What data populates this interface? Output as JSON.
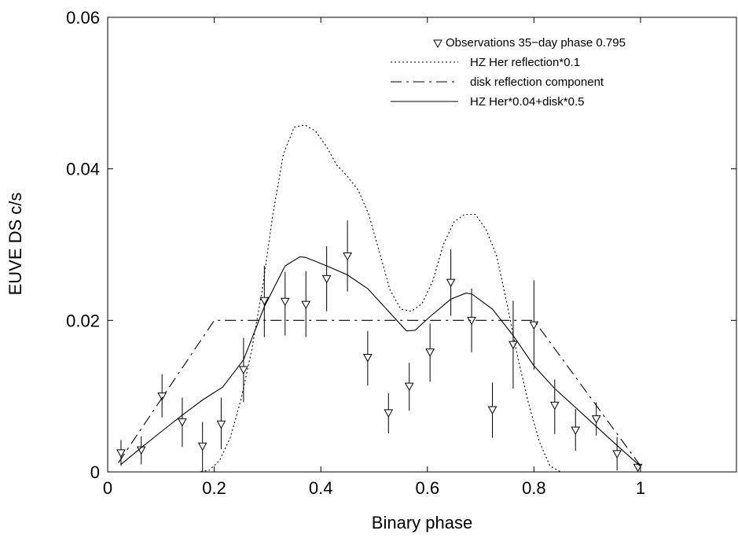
{
  "chart_data": {
    "type": "scatter",
    "xlabel": "Binary phase",
    "ylabel": "EUVE DS c/s",
    "xlim": [
      0,
      1.18
    ],
    "ylim": [
      0,
      0.06
    ],
    "x_ticks": [
      0,
      0.2,
      0.4,
      0.6,
      0.8,
      1
    ],
    "x_tick_labels": [
      "0",
      "0.2",
      "0.4",
      "0.6",
      "0.8",
      "1"
    ],
    "y_ticks": [
      0,
      0.02,
      0.04,
      0.06
    ],
    "y_tick_labels": [
      "0",
      "0.02",
      "0.04",
      "0.06"
    ],
    "grid": false,
    "legend_position": "top-right",
    "series": [
      {
        "name": "Observations 35−day phase 0.795",
        "kind": "points-errorbars",
        "marker": "triangle-down",
        "points": [
          {
            "x": 0.025,
            "y": 0.0025,
            "lo": 0.0008,
            "hi": 0.0042
          },
          {
            "x": 0.063,
            "y": 0.0029,
            "lo": 0.001,
            "hi": 0.0047
          },
          {
            "x": 0.102,
            "y": 0.01,
            "lo": 0.0072,
            "hi": 0.0129
          },
          {
            "x": 0.14,
            "y": 0.0066,
            "lo": 0.0033,
            "hi": 0.0098
          },
          {
            "x": 0.178,
            "y": 0.0034,
            "lo": 0.0,
            "hi": 0.0066
          },
          {
            "x": 0.213,
            "y": 0.0063,
            "lo": 0.003,
            "hi": 0.0098
          },
          {
            "x": 0.255,
            "y": 0.0135,
            "lo": 0.0092,
            "hi": 0.0177
          },
          {
            "x": 0.294,
            "y": 0.0226,
            "lo": 0.0178,
            "hi": 0.0272
          },
          {
            "x": 0.333,
            "y": 0.0225,
            "lo": 0.018,
            "hi": 0.0264
          },
          {
            "x": 0.372,
            "y": 0.0221,
            "lo": 0.0178,
            "hi": 0.0265
          },
          {
            "x": 0.411,
            "y": 0.0255,
            "lo": 0.0212,
            "hi": 0.0298
          },
          {
            "x": 0.45,
            "y": 0.0285,
            "lo": 0.0238,
            "hi": 0.0332
          },
          {
            "x": 0.488,
            "y": 0.0151,
            "lo": 0.0114,
            "hi": 0.0186
          },
          {
            "x": 0.527,
            "y": 0.0078,
            "lo": 0.0051,
            "hi": 0.0104
          },
          {
            "x": 0.566,
            "y": 0.0113,
            "lo": 0.0081,
            "hi": 0.0144
          },
          {
            "x": 0.605,
            "y": 0.0158,
            "lo": 0.0119,
            "hi": 0.0196
          },
          {
            "x": 0.644,
            "y": 0.025,
            "lo": 0.0206,
            "hi": 0.0294
          },
          {
            "x": 0.683,
            "y": 0.02,
            "lo": 0.0158,
            "hi": 0.0242
          },
          {
            "x": 0.722,
            "y": 0.0082,
            "lo": 0.0045,
            "hi": 0.0118
          },
          {
            "x": 0.761,
            "y": 0.0168,
            "lo": 0.011,
            "hi": 0.0226
          },
          {
            "x": 0.8,
            "y": 0.0194,
            "lo": 0.0135,
            "hi": 0.0253
          },
          {
            "x": 0.839,
            "y": 0.0088,
            "lo": 0.005,
            "hi": 0.0122
          },
          {
            "x": 0.878,
            "y": 0.0055,
            "lo": 0.0028,
            "hi": 0.0083
          },
          {
            "x": 0.917,
            "y": 0.007,
            "lo": 0.0048,
            "hi": 0.0092
          },
          {
            "x": 0.956,
            "y": 0.0024,
            "lo": 0.0002,
            "hi": 0.0046
          },
          {
            "x": 0.995,
            "y": 0.0006,
            "lo": 0.0,
            "hi": 0.0012
          }
        ]
      },
      {
        "name": "HZ Her reflection*0.1",
        "kind": "line",
        "dash": "dotted",
        "x": [
          0.02,
          0.17,
          0.19,
          0.21,
          0.23,
          0.25,
          0.27,
          0.29,
          0.31,
          0.33,
          0.35,
          0.37,
          0.39,
          0.41,
          0.43,
          0.45,
          0.47,
          0.49,
          0.51,
          0.53,
          0.55,
          0.57,
          0.59,
          0.61,
          0.63,
          0.65,
          0.67,
          0.69,
          0.71,
          0.73,
          0.75,
          0.77,
          0.79,
          0.81,
          0.83,
          0.85,
          0.999
        ],
        "y": [
          0.0,
          0.0,
          0.0002,
          0.0015,
          0.0045,
          0.0095,
          0.016,
          0.024,
          0.034,
          0.042,
          0.0455,
          0.0458,
          0.045,
          0.043,
          0.0405,
          0.039,
          0.0372,
          0.034,
          0.029,
          0.024,
          0.0215,
          0.0212,
          0.0222,
          0.0252,
          0.03,
          0.033,
          0.034,
          0.034,
          0.032,
          0.0285,
          0.022,
          0.015,
          0.009,
          0.004,
          0.0008,
          0.0,
          0.0
        ]
      },
      {
        "name": "disk reflection component",
        "kind": "line",
        "dash": "dash-dot",
        "x": [
          0.02,
          0.2,
          0.8,
          1.0
        ],
        "y": [
          0.0012,
          0.02,
          0.02,
          0.0008
        ]
      },
      {
        "name": "HZ Her*0.04+disk*0.5",
        "kind": "line",
        "dash": "solid",
        "x": [
          0.025,
          0.063,
          0.102,
          0.14,
          0.178,
          0.216,
          0.255,
          0.294,
          0.333,
          0.361,
          0.372,
          0.411,
          0.45,
          0.488,
          0.527,
          0.561,
          0.577,
          0.605,
          0.644,
          0.672,
          0.683,
          0.722,
          0.761,
          0.8,
          0.839,
          0.878,
          0.917,
          0.956,
          0.999
        ],
        "y": [
          0.001,
          0.0032,
          0.0054,
          0.0075,
          0.0095,
          0.0112,
          0.0148,
          0.0218,
          0.0272,
          0.0284,
          0.0283,
          0.0272,
          0.026,
          0.0242,
          0.0212,
          0.0186,
          0.0187,
          0.0205,
          0.0228,
          0.0236,
          0.0235,
          0.0215,
          0.018,
          0.014,
          0.011,
          0.0085,
          0.006,
          0.0035,
          0.0008
        ]
      }
    ]
  }
}
